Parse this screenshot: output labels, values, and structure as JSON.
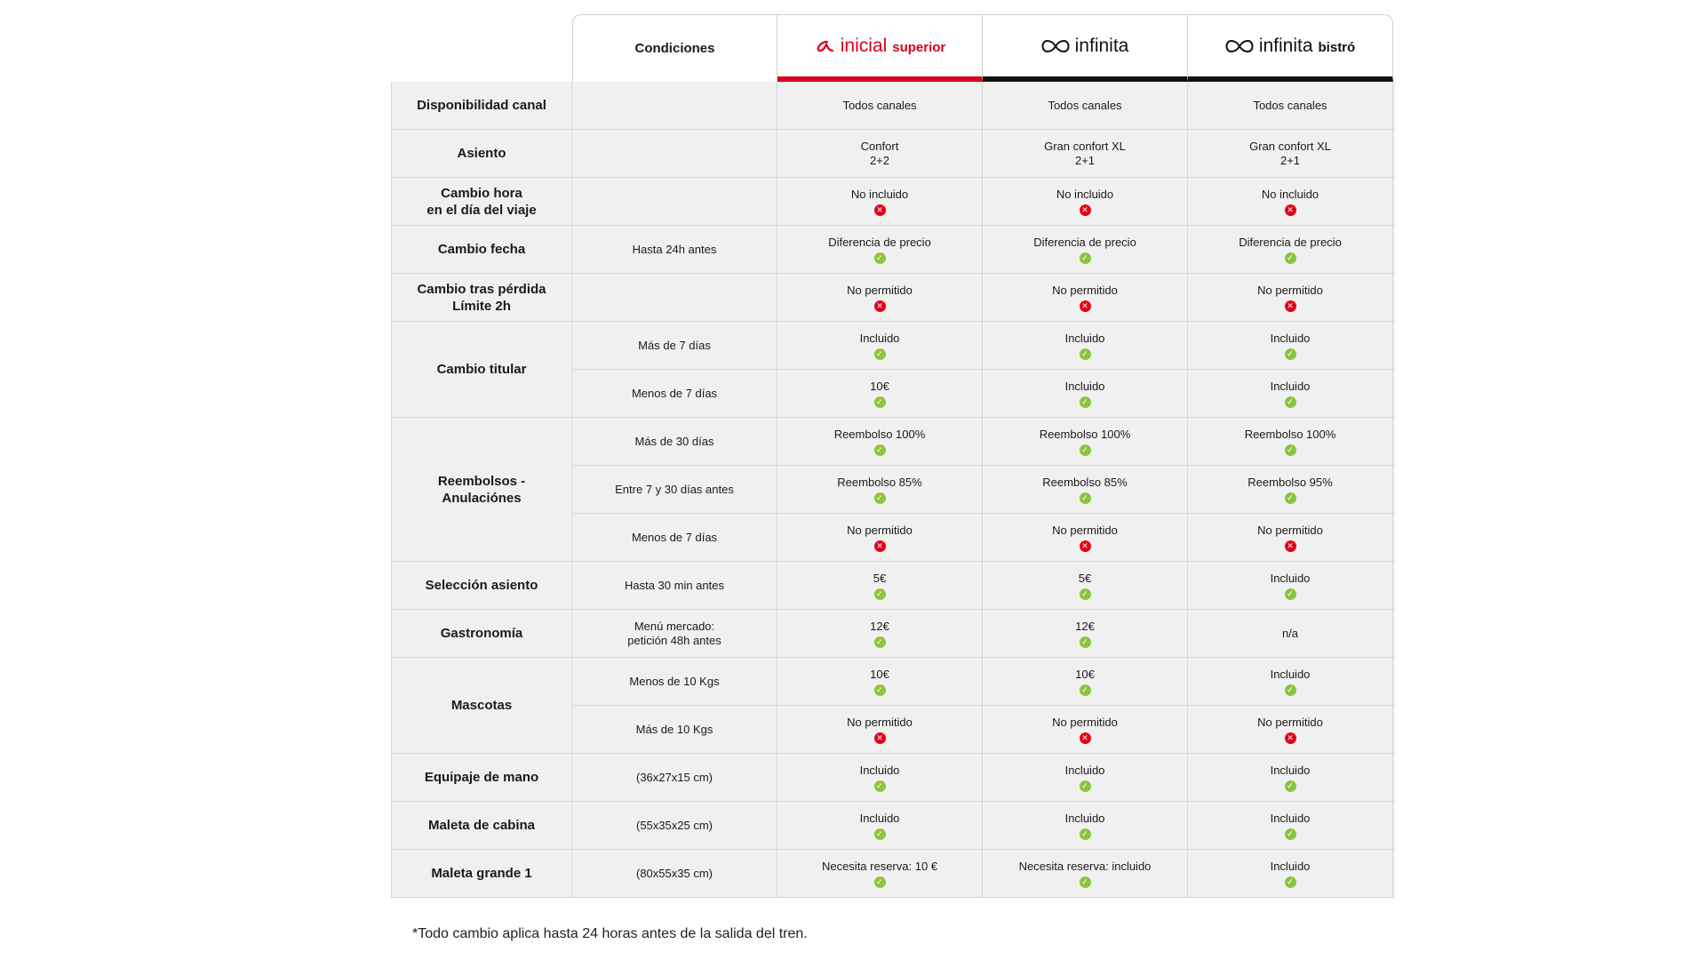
{
  "header": {
    "conditions_label": "Condiciones",
    "plans": [
      {
        "name": "inicial",
        "suffix": "superior",
        "color": "#d9001b",
        "logo": "alpha-logo-icon"
      },
      {
        "name": "infinita",
        "suffix": "",
        "color": "#111111",
        "logo": "infinity-logo-icon"
      },
      {
        "name": "infinita",
        "suffix": "bistró",
        "color": "#111111",
        "logo": "infinity-logo-icon"
      }
    ]
  },
  "rows": [
    {
      "feature": "Disponibilidad canal",
      "sub": [
        {
          "cond": "",
          "vals": [
            {
              "t": "Todos canales",
              "i": ""
            },
            {
              "t": "Todos canales",
              "i": ""
            },
            {
              "t": "Todos canales",
              "i": ""
            }
          ]
        }
      ]
    },
    {
      "feature": "Asiento",
      "sub": [
        {
          "cond": "",
          "vals": [
            {
              "t": "Confort\n2+2",
              "i": ""
            },
            {
              "t": "Gran confort XL\n2+1",
              "i": ""
            },
            {
              "t": "Gran confort XL\n2+1",
              "i": ""
            }
          ]
        }
      ]
    },
    {
      "feature": "Cambio hora\nen el día del viaje",
      "sub": [
        {
          "cond": "",
          "vals": [
            {
              "t": "No incluido",
              "i": "no"
            },
            {
              "t": "No incluido",
              "i": "no"
            },
            {
              "t": "No incluido",
              "i": "no"
            }
          ]
        }
      ]
    },
    {
      "feature": "Cambio fecha",
      "sub": [
        {
          "cond": "Hasta 24h antes",
          "vals": [
            {
              "t": "Diferencia de precio",
              "i": "ok"
            },
            {
              "t": "Diferencia de precio",
              "i": "ok"
            },
            {
              "t": "Diferencia de precio",
              "i": "ok"
            }
          ]
        }
      ]
    },
    {
      "feature": "Cambio tras pérdida\nLímite 2h",
      "sub": [
        {
          "cond": "",
          "vals": [
            {
              "t": "No permitido",
              "i": "no"
            },
            {
              "t": "No permitido",
              "i": "no"
            },
            {
              "t": "No permitido",
              "i": "no"
            }
          ]
        }
      ]
    },
    {
      "feature": "Cambio titular",
      "sub": [
        {
          "cond": "Más de 7 días",
          "vals": [
            {
              "t": "Incluido",
              "i": "ok"
            },
            {
              "t": "Incluido",
              "i": "ok"
            },
            {
              "t": "Incluido",
              "i": "ok"
            }
          ]
        },
        {
          "cond": "Menos de 7 días",
          "vals": [
            {
              "t": "10€",
              "i": "ok"
            },
            {
              "t": "Incluido",
              "i": "ok"
            },
            {
              "t": "Incluido",
              "i": "ok"
            }
          ]
        }
      ]
    },
    {
      "feature": "Reembolsos -\nAnulaciónes",
      "sub": [
        {
          "cond": "Más de 30 días",
          "vals": [
            {
              "t": "Reembolso 100%",
              "i": "ok"
            },
            {
              "t": "Reembolso 100%",
              "i": "ok"
            },
            {
              "t": "Reembolso 100%",
              "i": "ok"
            }
          ]
        },
        {
          "cond": "Entre 7 y 30 días antes",
          "vals": [
            {
              "t": "Reembolso 85%",
              "i": "ok"
            },
            {
              "t": "Reembolso 85%",
              "i": "ok"
            },
            {
              "t": "Reembolso 95%",
              "i": "ok"
            }
          ]
        },
        {
          "cond": "Menos de 7 días",
          "vals": [
            {
              "t": "No permitido",
              "i": "no"
            },
            {
              "t": "No permitido",
              "i": "no"
            },
            {
              "t": "No permitido",
              "i": "no"
            }
          ]
        }
      ]
    },
    {
      "feature": "Selección asiento",
      "sub": [
        {
          "cond": "Hasta 30 min antes",
          "vals": [
            {
              "t": "5€",
              "i": "ok"
            },
            {
              "t": "5€",
              "i": "ok"
            },
            {
              "t": "Incluido",
              "i": "ok"
            }
          ]
        }
      ]
    },
    {
      "feature": "Gastronomía",
      "sub": [
        {
          "cond": "Menú mercado:\npetición 48h antes",
          "vals": [
            {
              "t": "12€",
              "i": "ok"
            },
            {
              "t": "12€",
              "i": "ok"
            },
            {
              "t": "n/a",
              "i": ""
            }
          ]
        }
      ]
    },
    {
      "feature": "Mascotas",
      "sub": [
        {
          "cond": "Menos de 10 Kgs",
          "vals": [
            {
              "t": "10€",
              "i": "ok"
            },
            {
              "t": "10€",
              "i": "ok"
            },
            {
              "t": "Incluido",
              "i": "ok"
            }
          ]
        },
        {
          "cond": "Más de 10 Kgs",
          "vals": [
            {
              "t": "No permitido",
              "i": "no"
            },
            {
              "t": "No permitido",
              "i": "no"
            },
            {
              "t": "No permitido",
              "i": "no"
            }
          ]
        }
      ]
    },
    {
      "feature": "Equipaje de mano",
      "sub": [
        {
          "cond": "(36x27x15 cm)",
          "vals": [
            {
              "t": "Incluido",
              "i": "ok"
            },
            {
              "t": "Incluido",
              "i": "ok"
            },
            {
              "t": "Incluido",
              "i": "ok"
            }
          ]
        }
      ]
    },
    {
      "feature": "Maleta de cabina",
      "sub": [
        {
          "cond": "(55x35x25 cm)",
          "vals": [
            {
              "t": "Incluido",
              "i": "ok"
            },
            {
              "t": "Incluido",
              "i": "ok"
            },
            {
              "t": "Incluido",
              "i": "ok"
            }
          ]
        }
      ]
    },
    {
      "feature": "Maleta grande 1",
      "sub": [
        {
          "cond": "(80x55x35 cm)",
          "vals": [
            {
              "t": "Necesita reserva: 10 €",
              "i": "ok"
            },
            {
              "t": "Necesita reserva: incluido",
              "i": "ok"
            },
            {
              "t": "Incluido",
              "i": "ok"
            }
          ]
        }
      ]
    }
  ],
  "icons": {
    "ok": "check-circle-icon",
    "no": "cross-circle-icon",
    "ok_glyph": "✓",
    "no_glyph": "✕"
  },
  "footnote": "*Todo cambio aplica hasta 24 horas antes de la salida del tren."
}
